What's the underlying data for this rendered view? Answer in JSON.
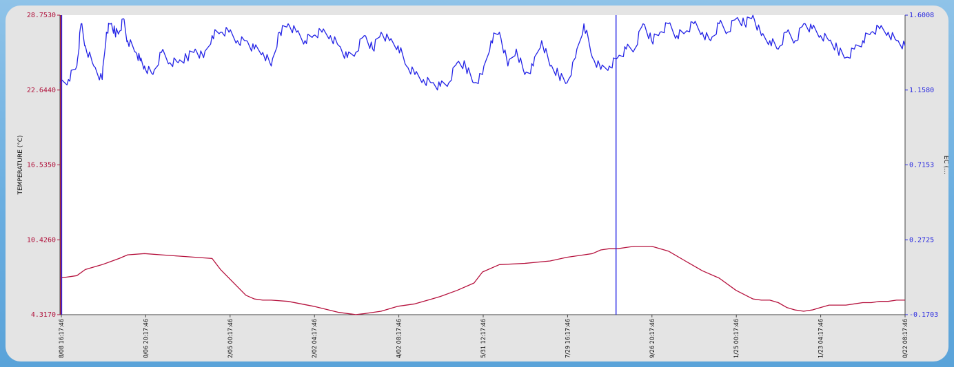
{
  "chart_data": {
    "type": "line",
    "ylabel_left": "TEMPERATURE (°C)",
    "ylabel_right": "EC (…",
    "left_axis": {
      "ticks": [
        "28.7530",
        "22.6440",
        "16.5350",
        "10.4260",
        "4.3170"
      ],
      "ylim": [
        4.317,
        28.753
      ]
    },
    "right_axis": {
      "ticks": [
        "1.6008",
        "1.1580",
        "0.7153",
        "0.2725",
        "-0.1703"
      ],
      "ylim": [
        -0.1703,
        1.6008
      ]
    },
    "x_ticks": [
      "8/08 16:17:46",
      "0/06 20:17:46",
      "2/05 00:17:46",
      "2/02 04:17:46",
      "4/02 08:17:46",
      "5/31 12:17:46",
      "7/29 16:17:46",
      "9/26 20:17:46",
      "1/25 00:17:46",
      "1/23 04:17:46",
      "0/22 08:17:46"
    ],
    "series": [
      {
        "axis": "left",
        "color": "#b5103c",
        "x": [
          0,
          0.02,
          0.03,
          0.05,
          0.07,
          0.08,
          0.1,
          0.12,
          0.14,
          0.16,
          0.18,
          0.19,
          0.2,
          0.21,
          0.22,
          0.23,
          0.24,
          0.25,
          0.27,
          0.3,
          0.33,
          0.35,
          0.36,
          0.38,
          0.4,
          0.42,
          0.44,
          0.45,
          0.47,
          0.49,
          0.5,
          0.52,
          0.55,
          0.58,
          0.6,
          0.61,
          0.62,
          0.63,
          0.64,
          0.65,
          0.66,
          0.67,
          0.68,
          0.69,
          0.7,
          0.72,
          0.74,
          0.76,
          0.78,
          0.8,
          0.82,
          0.83,
          0.84,
          0.85,
          0.86,
          0.87,
          0.88,
          0.89,
          0.9,
          0.91,
          0.92,
          0.93,
          0.94,
          0.95,
          0.96,
          0.97,
          0.98,
          0.99,
          1.0
        ],
        "y": [
          7.3,
          7.5,
          8.0,
          8.4,
          8.9,
          9.2,
          9.3,
          9.2,
          9.1,
          9.0,
          8.9,
          8.0,
          7.3,
          6.6,
          5.9,
          5.6,
          5.5,
          5.5,
          5.4,
          5.0,
          4.5,
          4.32,
          4.4,
          4.6,
          5.0,
          5.2,
          5.6,
          5.8,
          6.3,
          6.9,
          7.8,
          8.4,
          8.5,
          8.7,
          9.0,
          9.1,
          9.2,
          9.3,
          9.6,
          9.7,
          9.7,
          9.8,
          9.9,
          9.9,
          9.9,
          9.5,
          8.7,
          7.9,
          7.3,
          6.3,
          5.6,
          5.5,
          5.5,
          5.3,
          4.9,
          4.7,
          4.6,
          4.7,
          4.9,
          5.1,
          5.1,
          5.1,
          5.2,
          5.3,
          5.3,
          5.4,
          5.4,
          5.5,
          5.5
        ],
        "note_unused": ""
      },
      {
        "axis": "right",
        "color": "#2323e6",
        "x": [
          0,
          0.01,
          0.02,
          0.025,
          0.03,
          0.04,
          0.05,
          0.055,
          0.06,
          0.065,
          0.07,
          0.075,
          0.08,
          0.09,
          0.095,
          0.1,
          0.11,
          0.12,
          0.13,
          0.14,
          0.15,
          0.16,
          0.17,
          0.18,
          0.19,
          0.2,
          0.21,
          0.22,
          0.23,
          0.24,
          0.25,
          0.26,
          0.27,
          0.28,
          0.29,
          0.3,
          0.31,
          0.32,
          0.33,
          0.34,
          0.35,
          0.36,
          0.37,
          0.38,
          0.39,
          0.4,
          0.41,
          0.42,
          0.43,
          0.44,
          0.45,
          0.46,
          0.47,
          0.48,
          0.49,
          0.5,
          0.51,
          0.52,
          0.53,
          0.54,
          0.55,
          0.56,
          0.57,
          0.58,
          0.59,
          0.6,
          0.61,
          0.62,
          0.63,
          0.64,
          0.65,
          0.66,
          0.67,
          0.68,
          0.69,
          0.7,
          0.71,
          0.72,
          0.73,
          0.74,
          0.75,
          0.76,
          0.77,
          0.78,
          0.79,
          0.8,
          0.81,
          0.82,
          0.83,
          0.84,
          0.85,
          0.86,
          0.87,
          0.88,
          0.89,
          0.9,
          0.91,
          0.92,
          0.93,
          0.94,
          0.95,
          0.96,
          0.97,
          0.98,
          0.99,
          1.0
        ],
        "y": [
          1.2,
          1.22,
          1.3,
          1.55,
          1.42,
          1.3,
          1.22,
          1.5,
          1.55,
          1.5,
          1.5,
          1.58,
          1.45,
          1.38,
          1.33,
          1.3,
          1.25,
          1.38,
          1.32,
          1.32,
          1.35,
          1.4,
          1.35,
          1.48,
          1.5,
          1.5,
          1.45,
          1.45,
          1.4,
          1.38,
          1.3,
          1.5,
          1.55,
          1.5,
          1.45,
          1.48,
          1.5,
          1.48,
          1.42,
          1.35,
          1.38,
          1.48,
          1.4,
          1.5,
          1.45,
          1.42,
          1.3,
          1.25,
          1.22,
          1.2,
          1.18,
          1.2,
          1.32,
          1.3,
          1.2,
          1.25,
          1.45,
          1.5,
          1.3,
          1.4,
          1.25,
          1.3,
          1.45,
          1.3,
          1.25,
          1.2,
          1.35,
          1.55,
          1.35,
          1.28,
          1.3,
          1.35,
          1.4,
          1.4,
          1.55,
          1.45,
          1.5,
          1.55,
          1.48,
          1.5,
          1.55,
          1.5,
          1.45,
          1.55,
          1.5,
          1.58,
          1.55,
          1.6,
          1.48,
          1.45,
          1.4,
          1.5,
          1.45,
          1.55,
          1.52,
          1.48,
          1.45,
          1.4,
          1.35,
          1.4,
          1.45,
          1.5,
          1.52,
          1.5,
          1.45,
          1.42
        ]
      }
    ],
    "markers": [
      {
        "axis": "vertical",
        "color": "#d0102f",
        "position": 0.001
      },
      {
        "axis": "vertical",
        "color": "#2323e6",
        "position": 0.002
      },
      {
        "axis": "vertical",
        "color": "#2323e6",
        "position": 0.658
      }
    ],
    "grid": false
  }
}
